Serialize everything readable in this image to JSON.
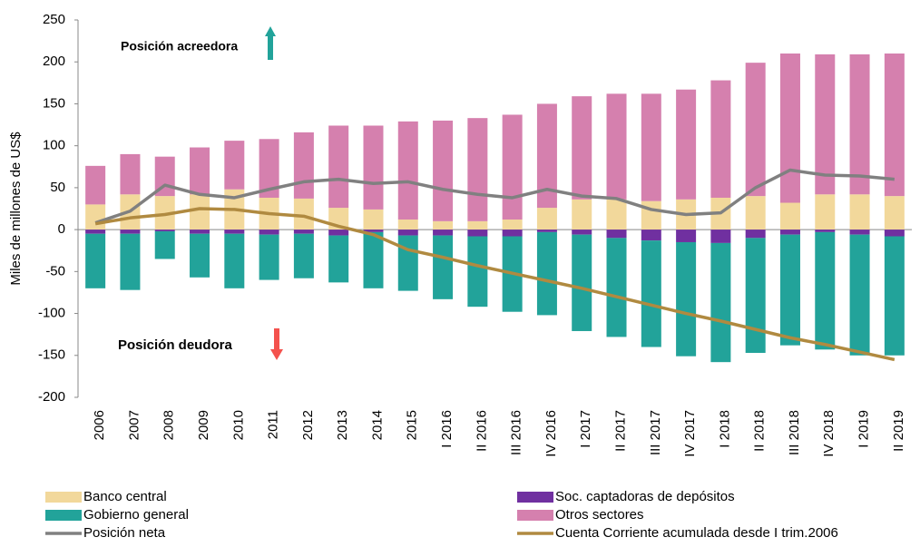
{
  "chart_data": {
    "type": "bar",
    "stacked": true,
    "ylabel": "Miles de millones de US$",
    "annotations": [
      "Posición acreedora",
      "Posición deudora"
    ],
    "categories": [
      "2006",
      "2007",
      "2008",
      "2009",
      "2010",
      "2011",
      "2012",
      "2013",
      "2014",
      "2015",
      "I 2016",
      "II 2016",
      "III 2016",
      "IV 2016",
      "I 2017",
      "II 2017",
      "III 2017",
      "IV 2017",
      "I 2018",
      "II 2018",
      "III 2018",
      "IV 2018",
      "I 2019",
      "II 2019"
    ],
    "series": [
      {
        "name": "Banco central",
        "type": "bar",
        "color": "#f2d89b",
        "values": [
          30,
          42,
          40,
          42,
          48,
          38,
          37,
          26,
          24,
          12,
          10,
          10,
          12,
          26,
          36,
          36,
          34,
          36,
          38,
          40,
          32,
          42,
          42,
          40
        ]
      },
      {
        "name": "Soc. captadoras de depósitos",
        "type": "bar",
        "color": "#7030a0",
        "values": [
          -5,
          -5,
          -2,
          -5,
          -5,
          -6,
          -5,
          -7,
          -3,
          -7,
          -7,
          -8,
          -8,
          -3,
          -6,
          -10,
          -13,
          -15,
          -16,
          -10,
          -6,
          -3,
          -6,
          -8
        ]
      },
      {
        "name": "Gobierno general",
        "type": "bar",
        "color": "#22a39a",
        "values": [
          -65,
          -67,
          -33,
          -52,
          -65,
          -54,
          -53,
          -56,
          -67,
          -66,
          -76,
          -84,
          -90,
          -99,
          -115,
          -118,
          -127,
          -136,
          -142,
          -137,
          -132,
          -140,
          -144,
          -142
        ]
      },
      {
        "name": "Otros sectores",
        "type": "bar",
        "color": "#d580ae",
        "values": [
          46,
          48,
          47,
          56,
          58,
          70,
          79,
          98,
          100,
          117,
          120,
          123,
          125,
          124,
          123,
          126,
          128,
          131,
          140,
          159,
          178,
          167,
          167,
          170
        ]
      },
      {
        "name": "Posición neta",
        "type": "line",
        "color": "#808080",
        "values": [
          8,
          22,
          53,
          42,
          38,
          48,
          57,
          60,
          55,
          57,
          48,
          42,
          38,
          48,
          40,
          37,
          24,
          18,
          20,
          50,
          71,
          65,
          64,
          60
        ]
      },
      {
        "name": "Cuenta Corriente acumulada desde I trim.2006",
        "type": "line",
        "color": "#b08a40",
        "values": [
          7,
          14,
          18,
          25,
          24,
          19,
          16,
          4,
          -6,
          -24,
          -33,
          -43,
          -52,
          -61,
          -70,
          -80,
          -90,
          -100,
          -109,
          -119,
          -129,
          -137,
          -146,
          -155
        ]
      }
    ],
    "ylim": [
      -200,
      250
    ],
    "yticks": [
      -200,
      -150,
      -100,
      -50,
      0,
      50,
      100,
      150,
      200,
      250
    ]
  }
}
